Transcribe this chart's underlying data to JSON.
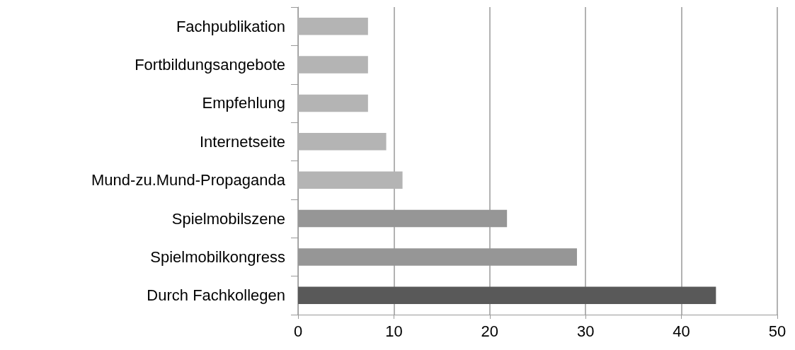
{
  "chart_data": {
    "type": "bar",
    "orientation": "horizontal",
    "categories": [
      "Fachpublikation",
      "Fortbildungsangebote",
      "Empfehlung",
      "Internetseite",
      "Mund-zu.Mund-Propaganda",
      "Spielmobilszene",
      "Spielmobilkongress",
      "Durch Fachkollegen"
    ],
    "values": [
      7.3,
      7.3,
      7.3,
      9.2,
      10.9,
      21.8,
      29.1,
      43.6
    ],
    "colors": [
      "#b4b4b4",
      "#b4b4b4",
      "#b4b4b4",
      "#b4b4b4",
      "#b4b4b4",
      "#969696",
      "#969696",
      "#595959"
    ],
    "xlim": [
      0,
      50
    ],
    "xticks": [
      0,
      10,
      20,
      30,
      40,
      50
    ],
    "grid": "x"
  }
}
